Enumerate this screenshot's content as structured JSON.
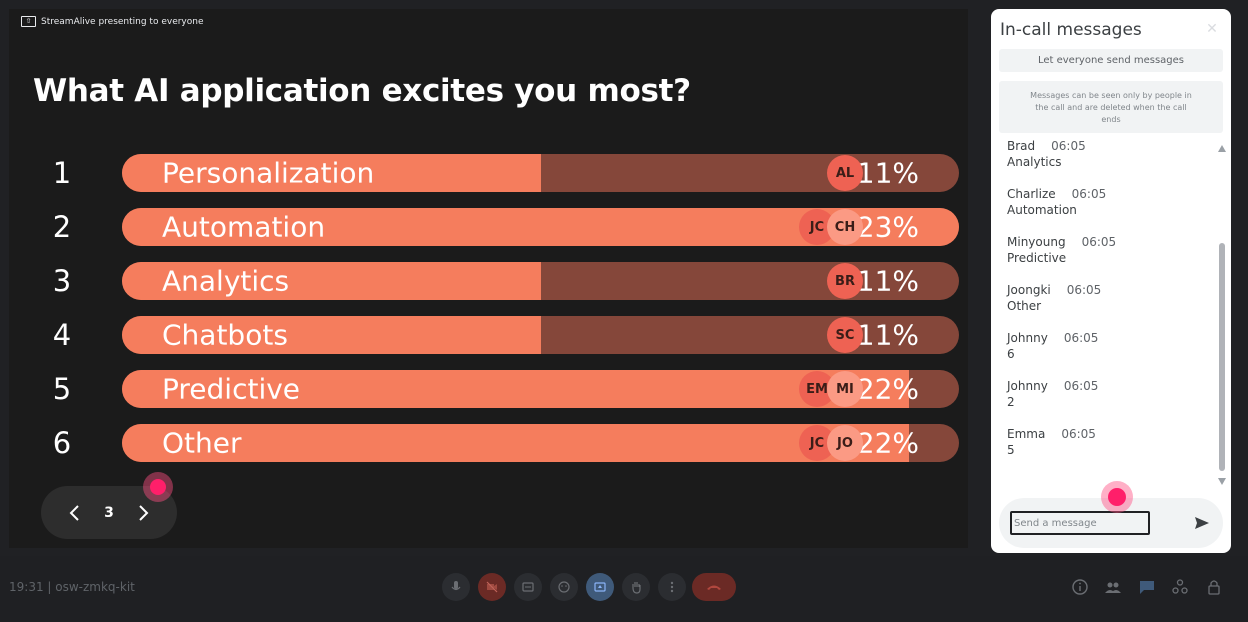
{
  "presentation": {
    "presenting_label": "StreamAlive presenting to everyone",
    "question": "What AI application excites you most?",
    "rows": [
      {
        "num": "1",
        "label": "Personalization",
        "percent": "11%",
        "fill": 0.5,
        "avatars": [
          "AL"
        ]
      },
      {
        "num": "2",
        "label": "Automation",
        "percent": "23%",
        "fill": 1.0,
        "avatars": [
          "JC",
          "CH"
        ]
      },
      {
        "num": "3",
        "label": "Analytics",
        "percent": "11%",
        "fill": 0.5,
        "avatars": [
          "BR"
        ]
      },
      {
        "num": "4",
        "label": "Chatbots",
        "percent": "11%",
        "fill": 0.5,
        "avatars": [
          "SC"
        ]
      },
      {
        "num": "5",
        "label": "Predictive",
        "percent": "22%",
        "fill": 0.94,
        "avatars": [
          "EM",
          "MI"
        ]
      },
      {
        "num": "6",
        "label": "Other",
        "percent": "22%",
        "fill": 0.94,
        "avatars": [
          "JC",
          "JO"
        ]
      }
    ],
    "pager": {
      "page": "3"
    }
  },
  "chat": {
    "title": "In-call messages",
    "let_everyone": "Let everyone send messages",
    "notice": "Messages can be seen only by people in the call and are deleted when the call ends",
    "messages": [
      {
        "name": "Brad",
        "time": "06:05",
        "text": "Analytics"
      },
      {
        "name": "Charlize",
        "time": "06:05",
        "text": "Automation"
      },
      {
        "name": "Minyoung",
        "time": "06:05",
        "text": "Predictive"
      },
      {
        "name": "Joongki",
        "time": "06:05",
        "text": "Other"
      },
      {
        "name": "Johnny",
        "time": "06:05",
        "text": "6"
      },
      {
        "name": "Johnny",
        "time": "06:05",
        "text": "2"
      },
      {
        "name": "Emma",
        "time": "06:05",
        "text": "5"
      }
    ],
    "input_placeholder": "Send a message"
  },
  "bottom_bar": {
    "meeting_info": "19:31  |  osw-zmkq-kit"
  },
  "colors": {
    "bar_fill": "#f57d5d",
    "bar_track": "#85473a",
    "cursor": "#ff1f6a",
    "end_call": "#6b2a25"
  }
}
